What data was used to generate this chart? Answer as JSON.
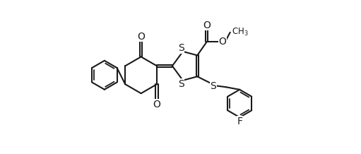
{
  "bg_color": "#ffffff",
  "line_color": "#1a1a1a",
  "line_width": 1.5,
  "font_size": 9,
  "figsize": [
    5.11,
    2.18
  ],
  "dpi": 100,
  "xlim": [
    0,
    10.5
  ],
  "ylim": [
    0.5,
    8.5
  ]
}
